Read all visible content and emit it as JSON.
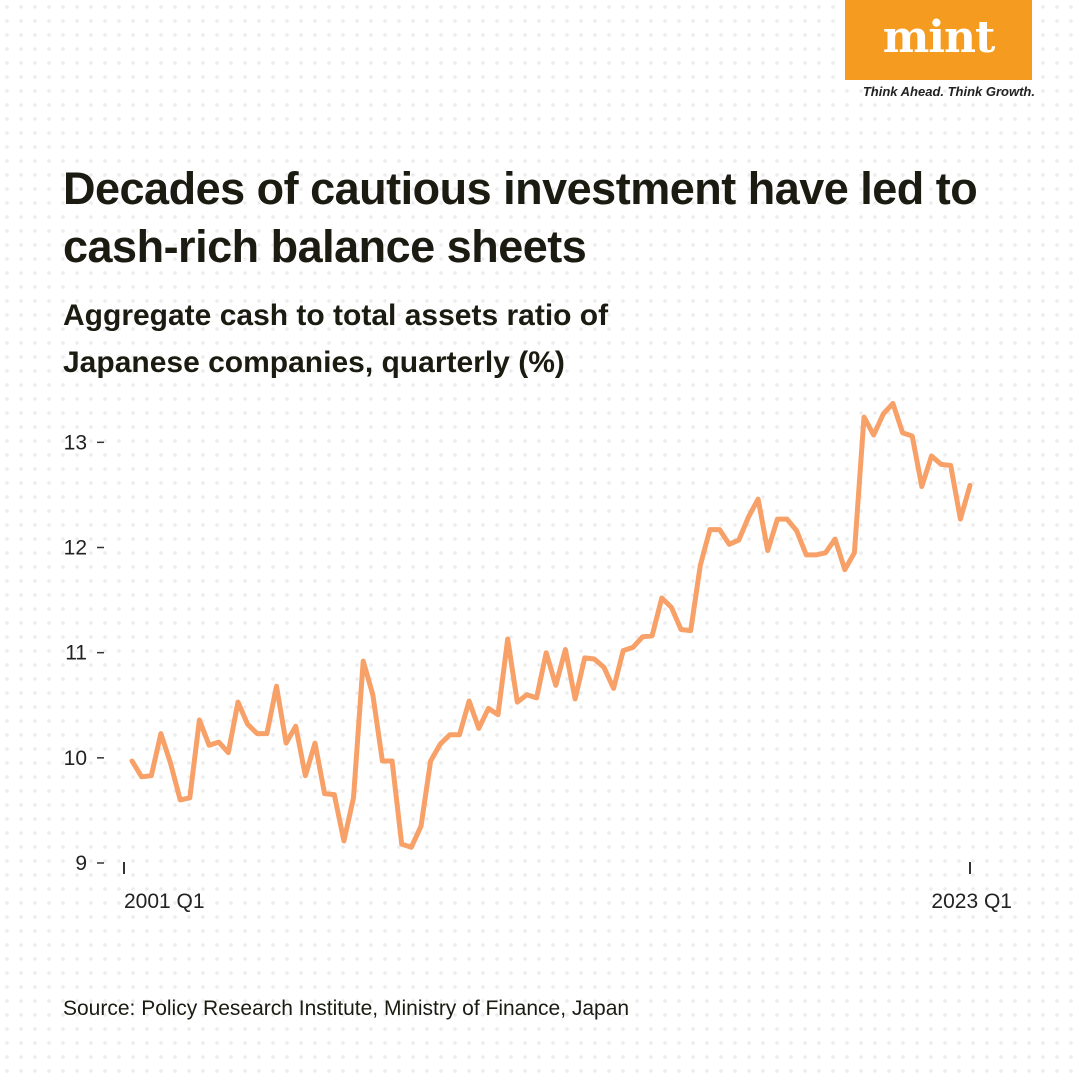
{
  "brand": {
    "logo": "mint",
    "tagline": "Think Ahead. Think Growth.",
    "accent_color": "#f49b20"
  },
  "header": {
    "title": "Decades of cautious investment have led to cash-rich balance sheets",
    "subtitle": "Aggregate cash to total assets ratio of Japanese companies, quarterly (%)"
  },
  "footer": {
    "source": "Source: Policy Research Institute, Ministry of Finance, Japan"
  },
  "chart_data": {
    "type": "line",
    "title": "Aggregate cash to total assets ratio of Japanese companies, quarterly (%)",
    "xlabel": "",
    "ylabel": "",
    "x_tick_labels": [
      "2001 Q1",
      "2023 Q1"
    ],
    "y_ticks": [
      9,
      10,
      11,
      12,
      13
    ],
    "y_tick_labels": [
      "9",
      "10",
      "11",
      "12",
      "13"
    ],
    "ylim": [
      9,
      13.45
    ],
    "grid": false,
    "line_color": "#f7a068",
    "series": [
      {
        "name": "Cash to total assets ratio",
        "x_start": "2001 Q1",
        "x_end": "2023 Q1",
        "values": [
          9.97,
          9.82,
          9.83,
          10.23,
          9.95,
          9.6,
          9.62,
          10.36,
          10.12,
          10.15,
          10.05,
          10.53,
          10.32,
          10.23,
          10.23,
          10.68,
          10.14,
          10.3,
          9.83,
          10.14,
          9.66,
          9.65,
          9.21,
          9.62,
          10.92,
          10.6,
          9.97,
          9.97,
          9.18,
          9.15,
          9.35,
          9.97,
          10.13,
          10.22,
          10.22,
          10.54,
          10.28,
          10.47,
          10.41,
          11.13,
          10.53,
          10.6,
          10.57,
          11.0,
          10.69,
          11.03,
          10.56,
          10.95,
          10.94,
          10.86,
          10.66,
          11.02,
          11.05,
          11.15,
          11.16,
          11.52,
          11.43,
          11.22,
          11.21,
          11.83,
          12.17,
          12.17,
          12.03,
          12.07,
          12.29,
          12.46,
          11.97,
          12.27,
          12.27,
          12.16,
          11.93,
          11.93,
          11.95,
          12.08,
          11.79,
          11.95,
          13.24,
          13.07,
          13.27,
          13.37,
          13.09,
          13.06,
          12.58,
          12.87,
          12.79,
          12.78,
          12.27,
          12.59
        ]
      }
    ]
  }
}
